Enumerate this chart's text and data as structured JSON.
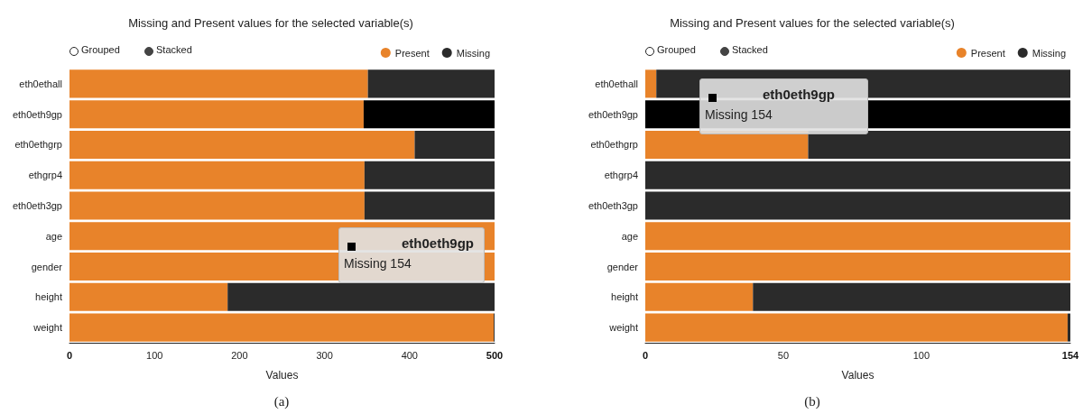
{
  "chart_data": [
    {
      "type": "bar",
      "orientation": "horizontal",
      "stacked": true,
      "title": "Missing and Present values for the selected variable(s)",
      "xlabel": "Values",
      "categories": [
        "eth0ethall",
        "eth0eth9gp",
        "eth0ethgrp",
        "ethgrp4",
        "eth0eth3gp",
        "age",
        "gender",
        "height",
        "weight"
      ],
      "series": [
        {
          "name": "Present",
          "color": "#e8832a",
          "values": [
            351,
            346,
            406,
            347,
            347,
            500,
            500,
            186,
            499
          ]
        },
        {
          "name": "Missing",
          "color": "#2b2b2b",
          "colors": [
            "#2b2b2b",
            "#000000",
            "#2b2b2b",
            "#2b2b2b",
            "#2b2b2b",
            "#2b2b2b",
            "#2b2b2b",
            "#2b2b2b",
            "#2b2b2b"
          ],
          "values": [
            149,
            154,
            94,
            153,
            153,
            0,
            0,
            314,
            1
          ]
        }
      ],
      "xlim": [
        0,
        500
      ],
      "xticks": [
        0,
        100,
        200,
        300,
        400,
        500
      ],
      "grid": false,
      "legend": "top right",
      "annotations": [
        "Grouped",
        "Stacked",
        "eth0eth9gp",
        "Missing 154",
        "(a)"
      ]
    },
    {
      "type": "bar",
      "orientation": "horizontal",
      "stacked": true,
      "title": "Missing and Present values for the selected variable(s)",
      "xlabel": "Values",
      "categories": [
        "eth0ethall",
        "eth0eth9gp",
        "eth0ethgrp",
        "ethgrp4",
        "eth0eth3gp",
        "age",
        "gender",
        "height",
        "weight"
      ],
      "series": [
        {
          "name": "Present",
          "color": "#e8832a",
          "values": [
            4,
            0,
            59,
            0,
            0,
            154,
            154,
            39,
            153
          ]
        },
        {
          "name": "Missing",
          "color": "#2b2b2b",
          "colors": [
            "#2b2b2b",
            "#000000",
            "#2b2b2b",
            "#2b2b2b",
            "#2b2b2b",
            "#2b2b2b",
            "#2b2b2b",
            "#2b2b2b",
            "#2b2b2b"
          ],
          "values": [
            150,
            154,
            95,
            154,
            154,
            0,
            0,
            115,
            1
          ]
        }
      ],
      "xlim": [
        0,
        154
      ],
      "xticks": [
        0,
        50,
        100,
        154
      ],
      "grid": false,
      "legend": "top right",
      "annotations": [
        "Grouped",
        "Stacked",
        "eth0eth9gp",
        "Missing 154",
        "(b)"
      ]
    }
  ]
}
